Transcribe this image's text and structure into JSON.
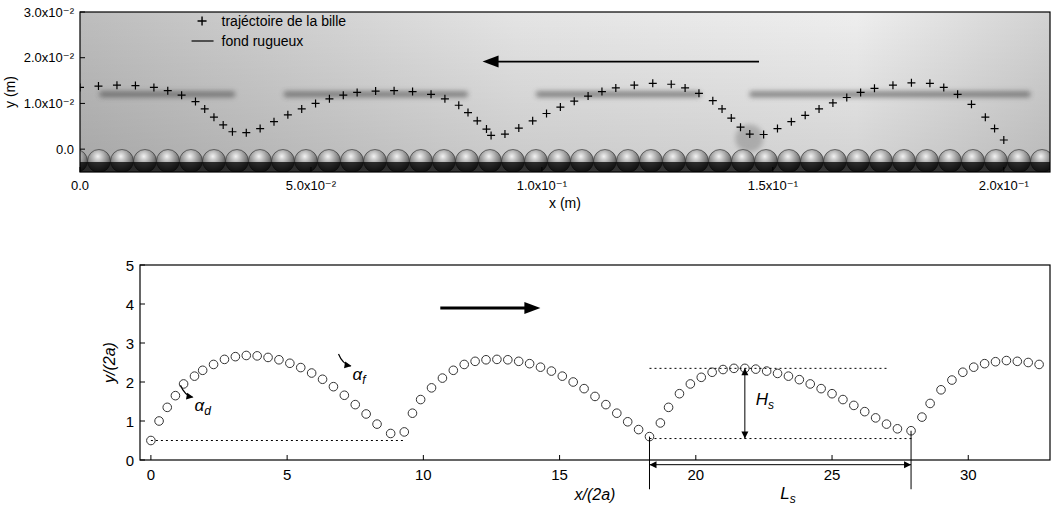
{
  "chart_data": [
    {
      "type": "scatter",
      "xlabel": "x (m)",
      "ylabel": "y (m)",
      "xlim": [
        0,
        0.21
      ],
      "ylim": [
        -0.005,
        0.03
      ],
      "xticks": [
        {
          "value": 0,
          "label": "0.0"
        },
        {
          "value": 0.05,
          "label": "5.0x10⁻²"
        },
        {
          "value": 0.1,
          "label": "1.0x10⁻¹"
        },
        {
          "value": 0.15,
          "label": "1.5x10⁻¹"
        },
        {
          "value": 0.2,
          "label": "2.0x10⁻¹"
        }
      ],
      "yticks": [
        {
          "value": 0,
          "label": "0.0"
        },
        {
          "value": 0.01,
          "label": "1.0x10⁻²"
        },
        {
          "value": 0.02,
          "label": "2.0x10⁻²"
        },
        {
          "value": 0.03,
          "label": "3.0x10⁻²"
        }
      ],
      "legend": "upper left",
      "series": [
        {
          "name": "trajéctoire de la bille",
          "marker": "plus",
          "color": "#000000",
          "x": [
            0.0,
            0.004,
            0.008,
            0.012,
            0.016,
            0.019,
            0.022,
            0.025,
            0.027,
            0.029,
            0.031,
            0.033,
            0.036,
            0.039,
            0.042,
            0.045,
            0.048,
            0.051,
            0.054,
            0.057,
            0.06,
            0.064,
            0.068,
            0.072,
            0.076,
            0.079,
            0.082,
            0.084,
            0.086,
            0.088,
            0.089,
            0.092,
            0.095,
            0.098,
            0.101,
            0.104,
            0.107,
            0.11,
            0.113,
            0.116,
            0.12,
            0.124,
            0.128,
            0.131,
            0.134,
            0.137,
            0.139,
            0.141,
            0.143,
            0.145,
            0.148,
            0.151,
            0.154,
            0.157,
            0.16,
            0.163,
            0.166,
            0.169,
            0.172,
            0.176,
            0.18,
            0.184,
            0.187,
            0.19,
            0.193,
            0.196,
            0.198,
            0.2
          ],
          "values": [
            0.0135,
            0.0138,
            0.014,
            0.0139,
            0.0135,
            0.0128,
            0.0118,
            0.0104,
            0.0088,
            0.007,
            0.0053,
            0.0038,
            0.0036,
            0.0045,
            0.006,
            0.0075,
            0.0088,
            0.01,
            0.011,
            0.0118,
            0.0124,
            0.0127,
            0.0128,
            0.0126,
            0.012,
            0.011,
            0.0096,
            0.008,
            0.0062,
            0.0044,
            0.003,
            0.0033,
            0.0046,
            0.0062,
            0.0078,
            0.0092,
            0.0105,
            0.0116,
            0.0126,
            0.0134,
            0.014,
            0.0144,
            0.0142,
            0.0134,
            0.0122,
            0.0106,
            0.0088,
            0.0068,
            0.0048,
            0.0033,
            0.0032,
            0.0045,
            0.006,
            0.0074,
            0.0088,
            0.0101,
            0.0113,
            0.0124,
            0.0133,
            0.014,
            0.0145,
            0.0144,
            0.0135,
            0.012,
            0.0098,
            0.007,
            0.0045,
            0.002
          ]
        },
        {
          "name": "fond rugueux",
          "line_style": "solid",
          "color": "#000000"
        }
      ]
    },
    {
      "type": "scatter",
      "xlabel": "x/(2a)",
      "ylabel": "y/(2a)",
      "xlim": [
        -0.4,
        33
      ],
      "ylim": [
        0,
        5
      ],
      "xticks": [
        0,
        5,
        10,
        15,
        20,
        25,
        30
      ],
      "yticks": [
        0,
        1,
        2,
        3,
        4,
        5
      ],
      "series": [
        {
          "marker": "circle",
          "color": "#333333",
          "x": [
            0.0,
            0.3,
            0.6,
            0.9,
            1.2,
            1.6,
            1.9,
            2.3,
            2.7,
            3.1,
            3.5,
            3.9,
            4.3,
            4.7,
            5.1,
            5.5,
            5.9,
            6.3,
            6.7,
            7.1,
            7.5,
            7.9,
            8.3,
            8.8,
            9.3,
            9.6,
            9.9,
            10.3,
            10.7,
            11.1,
            11.5,
            11.9,
            12.3,
            12.7,
            13.1,
            13.5,
            13.9,
            14.3,
            14.7,
            15.1,
            15.5,
            15.9,
            16.3,
            16.7,
            17.1,
            17.5,
            17.9,
            18.3,
            18.7,
            19.0,
            19.4,
            19.8,
            20.2,
            20.6,
            21.0,
            21.4,
            21.8,
            22.2,
            22.6,
            23.0,
            23.4,
            23.8,
            24.2,
            24.6,
            25.0,
            25.4,
            25.8,
            26.2,
            26.6,
            27.0,
            27.4,
            27.9,
            28.3,
            28.6,
            29.0,
            29.4,
            29.8,
            30.2,
            30.6,
            31.0,
            31.4,
            31.8,
            32.2,
            32.6
          ],
          "values": [
            0.5,
            1.0,
            1.35,
            1.65,
            1.95,
            2.15,
            2.3,
            2.45,
            2.58,
            2.65,
            2.68,
            2.67,
            2.63,
            2.57,
            2.48,
            2.37,
            2.23,
            2.07,
            1.88,
            1.66,
            1.42,
            1.18,
            0.92,
            0.68,
            0.72,
            1.2,
            1.55,
            1.85,
            2.1,
            2.3,
            2.45,
            2.53,
            2.57,
            2.58,
            2.57,
            2.53,
            2.47,
            2.38,
            2.28,
            2.15,
            2.0,
            1.83,
            1.63,
            1.42,
            1.2,
            0.98,
            0.78,
            0.6,
            0.95,
            1.35,
            1.7,
            1.95,
            2.12,
            2.25,
            2.32,
            2.35,
            2.35,
            2.33,
            2.28,
            2.22,
            2.15,
            2.06,
            1.95,
            1.83,
            1.7,
            1.55,
            1.4,
            1.24,
            1.08,
            0.92,
            0.8,
            0.75,
            1.1,
            1.45,
            1.8,
            2.05,
            2.25,
            2.38,
            2.47,
            2.52,
            2.55,
            2.53,
            2.5,
            2.45
          ]
        }
      ],
      "annotations": [
        {
          "text": "α",
          "sub": "d",
          "x": 1.6,
          "y": 1.25
        },
        {
          "text": "α",
          "sub": "f",
          "x": 7.4,
          "y": 2.05
        },
        {
          "text": "H",
          "sub": "s",
          "x": 22.2,
          "y": 1.4
        },
        {
          "text": "L",
          "sub": "s",
          "x": 23.1,
          "y": -1.0
        }
      ],
      "guides": [
        {
          "x": [
            0,
            9.3
          ],
          "y": [
            0.5,
            0.5
          ],
          "line_style": "dotted"
        },
        {
          "x": [
            18.3,
            28.0
          ],
          "y": [
            0.55,
            0.55
          ],
          "line_style": "dotted"
        },
        {
          "x": [
            18.3,
            27.0
          ],
          "y": [
            2.35,
            2.35
          ],
          "line_style": "dotted"
        },
        {
          "x": [
            21.8,
            21.8
          ],
          "y": [
            0.55,
            2.35
          ],
          "line_style": "arrow"
        },
        {
          "x": [
            18.3,
            27.9
          ],
          "y": [
            -0.12,
            -0.12
          ],
          "line_style": "arrow"
        },
        {
          "x": [
            18.3,
            18.3
          ],
          "y": [
            0.6,
            -0.75
          ],
          "line_style": "solid"
        },
        {
          "x": [
            27.9,
            27.9
          ],
          "y": [
            0.75,
            -0.75
          ],
          "line_style": "solid"
        }
      ]
    }
  ]
}
